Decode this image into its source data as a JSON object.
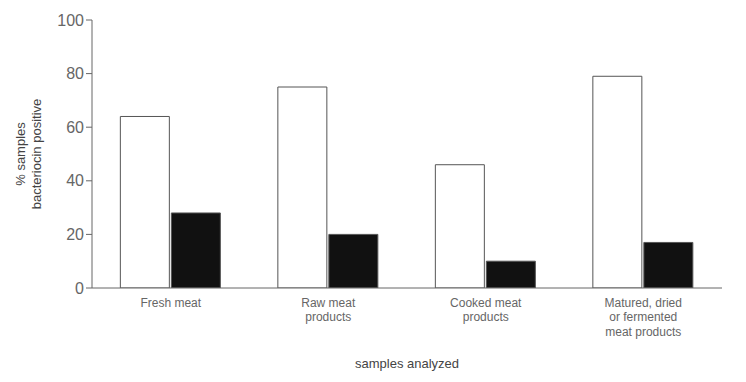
{
  "chart_data": {
    "type": "bar",
    "categories": [
      "Fresh meat",
      "Raw meat\nproducts",
      "Cooked meat\nproducts",
      "Matured, dried\nor fermented\nmeat products"
    ],
    "series": [
      {
        "color": "#ffffff",
        "values": [
          64,
          75,
          46,
          79
        ]
      },
      {
        "color": "#111111",
        "values": [
          28,
          20,
          10,
          17
        ]
      }
    ],
    "y_label": "% samples\nbacteriocin positive",
    "x_label": "samples analyzed",
    "ylim": [
      0,
      100
    ],
    "yticks": [
      0,
      20,
      40,
      60,
      80,
      100
    ],
    "grid": false
  }
}
